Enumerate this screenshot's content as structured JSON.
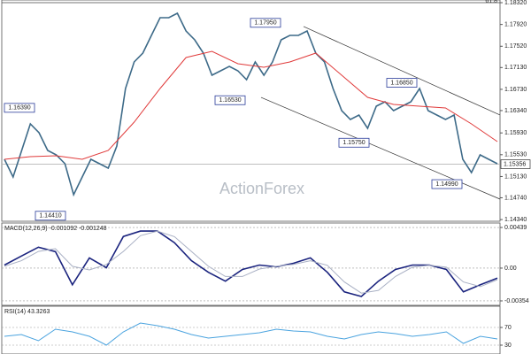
{
  "chart_data": [
    {
      "type": "line",
      "series": [
        {
          "color": "#3d6a88",
          "values": [
            1.15446,
            1.15121,
            1.15608,
            1.16095,
            1.15933,
            1.15608,
            1.15527,
            1.15365,
            1.14796,
            1.15121,
            1.15446,
            1.15365,
            1.15283,
            1.15689,
            1.16745,
            1.17232,
            1.17395,
            1.17719,
            1.18044,
            1.18044,
            1.18125,
            1.17801,
            1.17638,
            1.17395,
            1.16989,
            1.1707,
            1.17151,
            1.1707,
            1.16907,
            1.17232,
            1.16989,
            1.17232,
            1.17638,
            1.17719,
            1.17719,
            1.17801,
            1.17395,
            1.17232,
            1.16745,
            1.16339,
            1.16177,
            1.16258,
            1.16014,
            1.1642,
            1.16501,
            1.16339,
            1.1642,
            1.16501,
            1.16745,
            1.16339,
            1.16258,
            1.16177,
            1.16258,
            1.15446,
            1.15202,
            1.15527,
            1.15446,
            1.15365
          ]
        },
        {
          "color": "#e03a3a",
          "values": [
            1.15446,
            1.15495,
            1.15511,
            1.15446,
            1.15608,
            1.16128,
            1.16745,
            1.17313,
            1.17427,
            1.172,
            1.17135,
            1.17232,
            1.17395,
            1.16989,
            1.16583,
            1.16453,
            1.1642,
            1.16388,
            1.16095,
            1.1577
          ]
        }
      ],
      "ylim": [
        1.14309,
        1.18369
      ],
      "yticks": [
        {
          "value": 1.1832,
          "label": "1.18320"
        },
        {
          "value": 1.1792,
          "label": "1.17920"
        },
        {
          "value": 1.1752,
          "label": "1.17520"
        },
        {
          "value": 1.1713,
          "label": "1.17130"
        },
        {
          "value": 1.1673,
          "label": "1.16730"
        },
        {
          "value": 1.1634,
          "label": "1.16340"
        },
        {
          "value": 1.1593,
          "label": "1.15930"
        },
        {
          "value": 1.1553,
          "label": "1.15530"
        },
        {
          "value": 1.1513,
          "label": "1.15130"
        },
        {
          "value": 1.1474,
          "label": "1.14740"
        },
        {
          "value": 1.1434,
          "label": "1.14340"
        }
      ],
      "hline": {
        "value": 1.1832,
        "label": "61.8"
      },
      "last_price": {
        "value": 1.15356,
        "label": "1.15356"
      },
      "channel": [
        [
          1.17882,
          1.16258
        ],
        [
          1.16582,
          1.14715
        ]
      ],
      "annotations": [
        {
          "value": 1.1795,
          "label": "1.17950"
        },
        {
          "value": 1.1653,
          "label": "1.16530"
        },
        {
          "value": 1.1639,
          "label": "1.16390"
        },
        {
          "value": 1.1441,
          "label": "1.14410"
        },
        {
          "value": 1.1575,
          "label": "1.15750"
        },
        {
          "value": 1.1685,
          "label": "1.16850"
        },
        {
          "value": 1.1499,
          "label": "1.14990"
        }
      ],
      "watermark": "ActionForex"
    },
    {
      "type": "line",
      "title": "MACD(12,26,9) -0.001092 -0.001248",
      "series": [
        {
          "color": "#1a237e",
          "values": [
            0.00033,
            0.0013,
            0.00226,
            0.00178,
            -0.0018,
            0.0011,
            4e-05,
            0.00342,
            0.004,
            0.004,
            0.00275,
            0.00081,
            -0.00045,
            -0.00141,
            -0.00015,
            0.00033,
            0.00014,
            0.00052,
            0.0011,
            -0.00045,
            -0.00257,
            -0.00306,
            -0.00141,
            -0.00015,
            0.00033,
            0.00033,
            -0.00015,
            -0.00257,
            -0.0018,
            -0.00109
          ]
        },
        {
          "color": "#a9b0c4",
          "values": [
            0.0002,
            0.0008,
            0.0018,
            0.0021,
            0.0002,
            -0.0002,
            0.0004,
            0.0018,
            0.0035,
            0.004,
            0.0034,
            0.0018,
            0.0002,
            -0.0009,
            -0.0009,
            -0.0001,
            0.0002,
            0.0004,
            0.0008,
            0.0003,
            -0.0015,
            -0.0027,
            -0.0024,
            -0.0009,
            0.0001,
            0.0003,
            0.0001,
            -0.0015,
            -0.002,
            -0.00125
          ]
        }
      ],
      "ylim": [
        -0.00402,
        0.00487
      ],
      "yticks": [
        0.00439,
        {
          "value": 0,
          "label": "0.00"
        },
        -0.00354
      ]
    },
    {
      "type": "line",
      "title": "RSI(14) 43.3263",
      "series": [
        {
          "color": "#4aa3df",
          "values": [
            50,
            54,
            40,
            66,
            60,
            50,
            30,
            60,
            80,
            74,
            66,
            54,
            46,
            50,
            54,
            58,
            66,
            62,
            60,
            50,
            44,
            54,
            60,
            56,
            50,
            54,
            60,
            34,
            50,
            44
          ]
        }
      ],
      "ylim": [
        10,
        118
      ],
      "yticks": [
        70,
        30
      ]
    }
  ]
}
